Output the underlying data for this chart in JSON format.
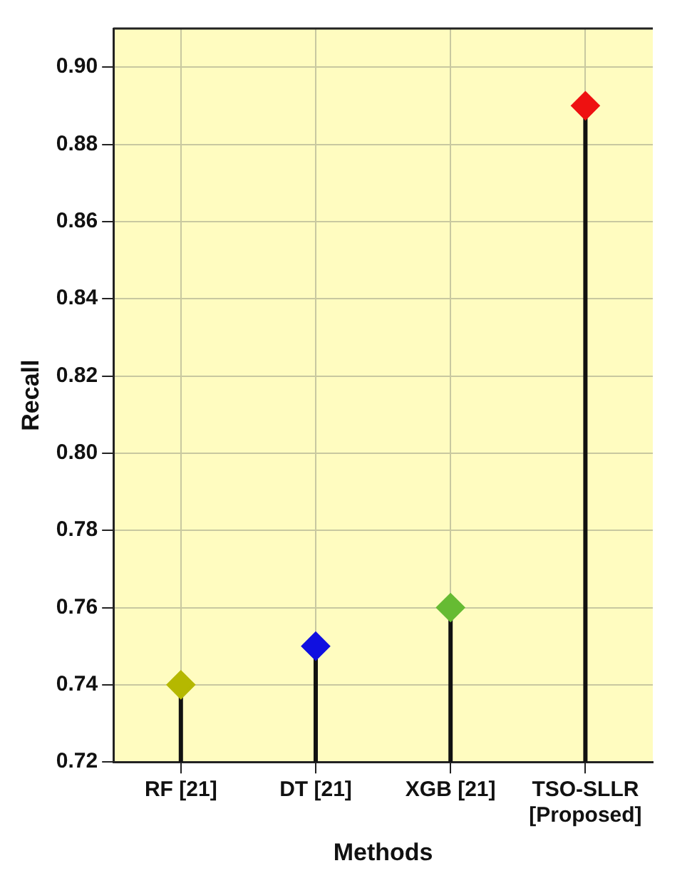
{
  "chart_data": {
    "type": "lollipop",
    "xlabel": "Methods",
    "ylabel": "Recall",
    "categories": [
      "RF [21]",
      "DT [21]",
      "XGB [21]",
      "TSO-SLLR\n[Proposed]"
    ],
    "values": [
      0.74,
      0.75,
      0.76,
      0.89
    ],
    "colors": [
      "#b5b800",
      "#1010e0",
      "#66bb33",
      "#ee1111"
    ],
    "ylim": [
      0.72,
      0.91
    ],
    "yticks": [
      0.72,
      0.74,
      0.76,
      0.78,
      {
        "value": 0.8,
        "label": "0.80"
      },
      0.82,
      0.84,
      0.86,
      0.88,
      {
        "value": 0.9,
        "label": "0.90"
      }
    ],
    "grid": true,
    "marker": "diamond"
  }
}
